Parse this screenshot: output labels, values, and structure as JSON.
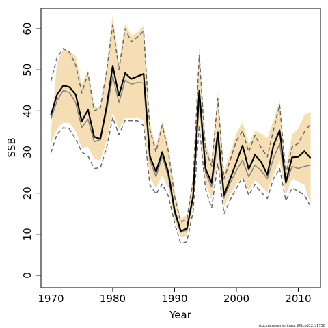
{
  "chart_data": {
    "type": "line",
    "xlabel": "Year",
    "ylabel": "SSB",
    "xlim": [
      1968.4,
      1963.4
    ],
    "ylim": [
      -3,
      65
    ],
    "x_ticks": [
      1970,
      1980,
      1990,
      2000,
      2010
    ],
    "y_ticks": [
      0,
      10,
      20,
      30,
      40,
      50,
      60
    ],
    "x_tick_labels": [
      "1970",
      "1980",
      "1990",
      "2000",
      "2010"
    ],
    "y_tick_labels": [
      "0",
      "10",
      "20",
      "30",
      "40",
      "50",
      "60"
    ],
    "years": [
      1970,
      1971,
      1972,
      1973,
      1974,
      1975,
      1976,
      1977,
      1978,
      1979,
      1980,
      1981,
      1982,
      1983,
      1984,
      1985,
      1986,
      1987,
      1988,
      1989,
      1990,
      1991,
      1992,
      1993,
      1994,
      1995,
      1996,
      1997,
      1998,
      1999,
      2000,
      2001,
      2002,
      2003,
      2004,
      2005,
      2006,
      2007,
      2008,
      2009,
      2010,
      2011,
      2012
    ],
    "band_color": "#f5deb3",
    "series": [
      {
        "role": "estimate",
        "color": "#000000",
        "style": "solid-thick",
        "values": [
          39,
          44,
          46.2,
          45.8,
          44,
          37.5,
          40.3,
          33.7,
          33.2,
          41,
          51,
          43.7,
          49.2,
          47.8,
          48.4,
          49,
          29,
          25.2,
          30,
          25,
          15.8,
          10.8,
          11.4,
          19.3,
          45,
          26,
          22.5,
          34.8,
          19.5,
          23.5,
          27.5,
          31.6,
          25.8,
          29.3,
          27.6,
          24.5,
          31.6,
          35.3,
          22.6,
          28.7,
          28.8,
          30.2,
          28.5
        ]
      },
      {
        "role": "alternative",
        "color": "#808080",
        "style": "solid",
        "values": [
          38,
          42.5,
          45,
          44.5,
          42,
          36,
          38,
          32.5,
          33,
          40,
          48.5,
          42,
          47.5,
          46.5,
          46.9,
          46.8,
          28,
          24,
          29,
          24,
          15,
          10.5,
          11,
          18.5,
          43,
          25,
          21.5,
          33,
          18.8,
          22.5,
          25.5,
          28,
          24,
          26.8,
          25.5,
          23.5,
          28.5,
          32,
          22.2,
          26.5,
          26,
          26.5,
          26.8
        ]
      },
      {
        "role": "upper-bound",
        "color": "#666666",
        "style": "dashed",
        "values": [
          47.3,
          53,
          55.2,
          54.3,
          51.2,
          44.4,
          49.2,
          40,
          40.8,
          49.5,
          61,
          50,
          60,
          56.8,
          58,
          59.4,
          35.5,
          30,
          36.5,
          30.2,
          19.2,
          13,
          13.7,
          22.8,
          53.6,
          30.5,
          26.6,
          43,
          23.5,
          28,
          32.7,
          35.1,
          30,
          34.1,
          31.1,
          28.8,
          35.3,
          41.5,
          24.5,
          31.2,
          32.1,
          34.9,
          36.8
        ]
      },
      {
        "role": "lower-bound",
        "color": "#666666",
        "style": "dashed",
        "values": [
          29.8,
          34.4,
          35.9,
          35.6,
          33.2,
          30,
          29,
          26,
          26.2,
          31,
          38.4,
          34.2,
          37.7,
          37.6,
          37.6,
          36.4,
          22,
          19.8,
          22.2,
          19.3,
          12.8,
          7.7,
          8.2,
          15.5,
          36.5,
          21,
          16.4,
          27.2,
          15,
          18.4,
          21.2,
          23.8,
          19.5,
          22.1,
          20.2,
          18.7,
          23.5,
          26,
          18.2,
          21.2,
          20.5,
          19.5,
          16.8
        ]
      },
      {
        "role": "band-upper",
        "values": [
          34.6,
          52,
          55,
          54.5,
          53.4,
          46.5,
          49.8,
          41,
          41,
          50.6,
          63.5,
          51.5,
          61.3,
          58.3,
          59,
          60.8,
          37,
          31.5,
          37.5,
          31.6,
          20.6,
          13.8,
          14.6,
          24.5,
          55.5,
          32.2,
          28,
          44.5,
          25.2,
          29.8,
          34.5,
          37.3,
          31.8,
          35.2,
          34.5,
          33.4,
          37.6,
          42.6,
          26,
          34.3,
          35.7,
          39,
          39.8
        ]
      },
      {
        "role": "band-lower",
        "values": [
          32.1,
          35.6,
          37.1,
          37,
          35.2,
          31,
          31.3,
          28.3,
          27.9,
          32.6,
          39.5,
          35.5,
          38.3,
          38.2,
          38.5,
          37.6,
          23.8,
          21.2,
          24.3,
          21.3,
          13.5,
          9.2,
          9.5,
          16.8,
          38.3,
          22.2,
          18.5,
          28.3,
          16.7,
          19.7,
          22.2,
          24,
          20.5,
          23.1,
          21.7,
          20.2,
          24.6,
          27.8,
          19.5,
          23.5,
          22.8,
          22,
          17.2
        ]
      }
    ]
  },
  "footnote": "stockassessment.org, WBcod12, r1730"
}
